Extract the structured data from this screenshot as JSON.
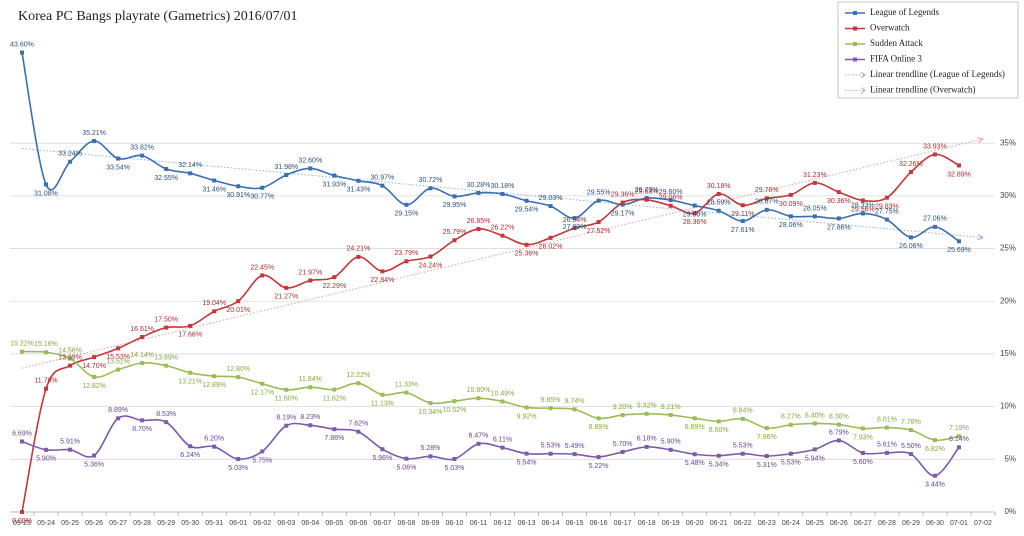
{
  "chart_data": {
    "type": "line",
    "title": "Korea PC Bangs playrate (Gametrics) 2016/07/01",
    "categories": [
      "05-23",
      "05-24",
      "05-25",
      "05-26",
      "05-27",
      "05-28",
      "05-29",
      "05-30",
      "05-31",
      "06-01",
      "06-02",
      "06-03",
      "06-04",
      "06-05",
      "06-06",
      "06-07",
      "06-08",
      "06-09",
      "06-10",
      "06-11",
      "06-12",
      "06-13",
      "06-14",
      "06-15",
      "06-16",
      "06-17",
      "06-18",
      "06-19",
      "06-20",
      "06-21",
      "06-22",
      "06-23",
      "06-24",
      "06-25",
      "06-26",
      "06-27",
      "06-28",
      "06-29",
      "06-30",
      "07-01",
      "07-02"
    ],
    "series": [
      {
        "name": "League of Legends",
        "color": "#3a6fb0",
        "label_color": "#2c4f7c",
        "values": [
          43.6,
          31.08,
          33.24,
          35.21,
          33.54,
          33.82,
          32.55,
          32.14,
          31.46,
          30.91,
          30.77,
          31.98,
          32.6,
          31.93,
          31.43,
          30.97,
          29.15,
          30.72,
          29.95,
          30.28,
          30.18,
          29.54,
          29.03,
          27.89,
          29.55,
          29.17,
          29.79,
          29.6,
          29.08,
          28.59,
          27.61,
          28.67,
          28.06,
          28.05,
          27.86,
          28.33,
          27.75,
          26.06,
          27.06,
          25.69,
          null
        ],
        "value_labels": [
          "43.60%",
          "31.08%",
          "33.24%",
          "35.21%",
          "33.54%",
          "33.82%",
          "32.55%",
          "32.14%",
          "31.46%",
          "30.91%",
          "30.77%",
          "31.98%",
          "32.60%",
          "31.93%",
          "31.43%",
          "30.97%",
          "29.15%",
          "30.72%",
          "29.95%",
          "30.28%",
          "30.18%",
          "29.54%",
          "29.03%",
          "27.89%",
          "29.55%",
          "29.17%",
          "29.79%",
          "29.60%",
          "29.08%",
          "28.59%",
          "27.61%",
          "28.67%",
          "28.06%",
          "28.05%",
          "27.86%",
          "28.33%",
          "27.75%",
          "26.06%",
          "27.06%",
          "25.69%",
          null
        ]
      },
      {
        "name": "Overwatch",
        "color": "#c0393b",
        "label_color": "#a33133",
        "values": [
          0.0,
          11.7,
          13.89,
          14.7,
          15.53,
          16.61,
          17.5,
          17.66,
          19.04,
          20.01,
          22.45,
          21.27,
          21.97,
          22.29,
          24.21,
          22.84,
          23.79,
          24.24,
          25.79,
          26.85,
          26.22,
          25.36,
          26.02,
          26.94,
          27.52,
          29.36,
          29.63,
          29.06,
          28.36,
          30.18,
          29.11,
          29.76,
          30.09,
          31.23,
          30.36,
          29.56,
          29.83,
          32.26,
          33.93,
          32.89,
          null
        ],
        "value_labels": [
          "0.00%",
          "11.70%",
          "13.89%",
          "14.70%",
          "15.53%",
          "16.61%",
          "17.50%",
          "17.66%",
          "19.04%",
          "20.01%",
          "22.45%",
          "21.27%",
          "21.97%",
          "22.29%",
          "24.21%",
          "22.84%",
          "23.79%",
          "24.24%",
          "25.79%",
          "26.85%",
          "26.22%",
          "25.36%",
          "26.02%",
          "26.94%",
          "27.52%",
          "29.36%",
          "29.63%",
          "29.06%",
          "28.36%",
          "30.18%",
          "29.11%",
          "29.76%",
          "30.09%",
          "31.23%",
          "30.36%",
          "29.56%",
          "29.83%",
          "32.26%",
          "33.93%",
          "32.89%",
          null
        ]
      },
      {
        "name": "Sudden Attack",
        "color": "#9bbb59",
        "label_color": "#86a83e",
        "values": [
          15.22,
          15.16,
          14.56,
          12.82,
          13.51,
          14.14,
          13.89,
          13.21,
          12.89,
          12.8,
          12.17,
          11.6,
          11.84,
          11.62,
          12.22,
          11.13,
          11.33,
          10.34,
          10.52,
          10.8,
          10.49,
          9.92,
          9.85,
          9.74,
          8.89,
          9.2,
          9.32,
          9.21,
          8.89,
          8.6,
          8.84,
          7.96,
          8.27,
          8.4,
          8.3,
          7.93,
          8.01,
          7.78,
          6.82,
          7.19,
          null
        ],
        "value_labels": [
          "15.22%",
          "15.16%",
          "14.56%",
          "12.82%",
          "13.51%",
          "14.14%",
          "13.89%",
          "13.21%",
          "12.89%",
          "12.80%",
          "12.17%",
          "11.60%",
          "11.84%",
          "11.62%",
          "12.22%",
          "11.13%",
          "11.33%",
          "10.34%",
          "10.52%",
          "10.80%",
          "10.49%",
          "9.92%",
          "9.85%",
          "9.74%",
          "8.89%",
          "9.20%",
          "9.32%",
          "9.21%",
          "8.89%",
          "8.60%",
          "8.84%",
          "7.96%",
          "8.27%",
          "8.40%",
          "8.30%",
          "7.93%",
          "8.01%",
          "7.78%",
          "6.82%",
          "7.19%",
          null
        ]
      },
      {
        "name": "FIFA Online 3",
        "color": "#7a5ca8",
        "label_color": "#64488f",
        "values": [
          6.69,
          5.9,
          5.91,
          5.36,
          8.89,
          8.7,
          8.53,
          6.24,
          6.2,
          5.03,
          5.75,
          8.19,
          8.23,
          7.86,
          7.62,
          5.96,
          5.06,
          5.28,
          5.03,
          6.47,
          6.11,
          5.54,
          5.53,
          5.49,
          5.22,
          5.7,
          6.18,
          5.9,
          5.48,
          5.34,
          5.53,
          5.31,
          5.53,
          5.94,
          6.79,
          5.6,
          5.61,
          5.5,
          3.44,
          6.14,
          null
        ],
        "value_labels": [
          "6.69%",
          "5.90%",
          "5.91%",
          "5.36%",
          "8.89%",
          "8.70%",
          "8.53%",
          "6.24%",
          "6.20%",
          "5.03%",
          "5.75%",
          "8.19%",
          "8.23%",
          "7.86%",
          "7.62%",
          "5.96%",
          "5.06%",
          "5.28%",
          "5.03%",
          "6.47%",
          "6.11%",
          "5.54%",
          "5.53%",
          "5.49%",
          "5.22%",
          "5.70%",
          "6.18%",
          "5.90%",
          "5.48%",
          "5.34%",
          "5.53%",
          "5.31%",
          "5.53%",
          "5.94%",
          "6.79%",
          "5.60%",
          "5.61%",
          "5.50%",
          "3.44%",
          "6.14%",
          null
        ]
      }
    ],
    "trendlines": [
      {
        "name": "Linear trendline (League of Legends)",
        "series": 0,
        "color": "#8fb0d8"
      },
      {
        "name": "Linear trendline (Overwatch)",
        "series": 1,
        "color": "#e0a0a0"
      }
    ],
    "ylim": [
      0,
      46.5
    ],
    "yticks": [
      {
        "value": 0,
        "label": "0%"
      },
      {
        "value": 5,
        "label": "5%"
      },
      {
        "value": 10,
        "label": "10%"
      },
      {
        "value": 15,
        "label": "15%"
      },
      {
        "value": 20,
        "label": "20%"
      },
      {
        "value": 25,
        "label": "25%"
      },
      {
        "value": 30,
        "label": "30%"
      },
      {
        "value": 35,
        "label": "35%"
      }
    ],
    "grid": true,
    "legend": "top-right"
  }
}
